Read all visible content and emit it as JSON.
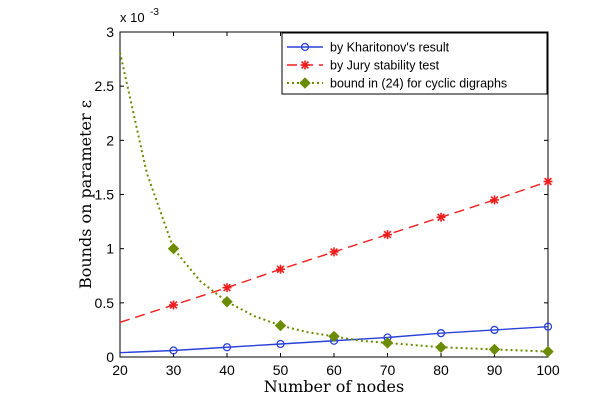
{
  "chart_data": {
    "type": "line",
    "xlabel": "Number of nodes",
    "ylabel": "Bounds on parameter ε",
    "xlim": [
      20,
      100
    ],
    "ylim": [
      0,
      3
    ],
    "x_ticks": [
      20,
      30,
      40,
      50,
      60,
      70,
      80,
      90,
      100
    ],
    "y_ticks": [
      0,
      0.5,
      1,
      1.5,
      2,
      2.5,
      3
    ],
    "y_tick_labels": [
      "0",
      "0.5",
      "1",
      "1.5",
      "2",
      "2.5",
      "3"
    ],
    "y_scale_label": {
      "base": "x 10",
      "exponent": "-3"
    },
    "legend_position": "top-right",
    "series": [
      {
        "name": "by Kharitonov's result",
        "color": "#2a42d6",
        "style": "solid",
        "marker": "circle",
        "x": [
          20,
          30,
          40,
          50,
          60,
          70,
          80,
          90,
          100
        ],
        "values": [
          0.04,
          0.06,
          0.09,
          0.12,
          0.15,
          0.18,
          0.22,
          0.25,
          0.28
        ],
        "marker_x": [
          30,
          40,
          50,
          60,
          70,
          80,
          90,
          100
        ]
      },
      {
        "name": "by Jury stability test",
        "color": "#ee1d1d",
        "style": "dashed",
        "marker": "asterisk",
        "x": [
          20,
          30,
          40,
          50,
          60,
          70,
          80,
          90,
          100
        ],
        "values": [
          0.32,
          0.48,
          0.64,
          0.81,
          0.97,
          1.13,
          1.29,
          1.45,
          1.62
        ],
        "marker_x": [
          30,
          40,
          50,
          60,
          70,
          80,
          90,
          100
        ]
      },
      {
        "name": "bound in (24) for cyclic digraphs",
        "color": "#6b8c00",
        "style": "dotted",
        "marker": "diamond",
        "x": [
          20,
          25,
          30,
          35,
          40,
          45,
          50,
          55,
          60,
          65,
          70,
          75,
          80,
          85,
          90,
          95,
          100
        ],
        "values": [
          2.81,
          1.7,
          1.0,
          0.7,
          0.51,
          0.38,
          0.29,
          0.23,
          0.19,
          0.15,
          0.13,
          0.11,
          0.09,
          0.08,
          0.07,
          0.06,
          0.05
        ],
        "marker_x": [
          30,
          40,
          50,
          60,
          70,
          80,
          90,
          100
        ]
      }
    ]
  }
}
